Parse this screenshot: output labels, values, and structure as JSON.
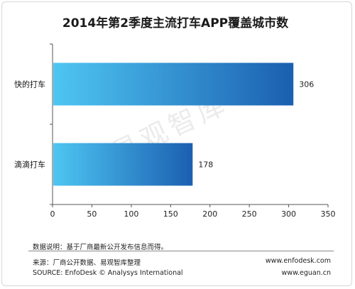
{
  "chart_data": {
    "type": "bar",
    "orientation": "horizontal",
    "title": "2014年第2季度主流打车APP覆盖城市数",
    "categories": [
      "快的打车",
      "滴滴打车"
    ],
    "values": [
      306,
      178
    ],
    "xlim": [
      0,
      350
    ],
    "xticks": [
      "0",
      "50",
      "100",
      "150",
      "200",
      "250",
      "300",
      "350"
    ],
    "bar_gradient": [
      "#4ec6f2",
      "#1b5fb0"
    ]
  },
  "watermark": "易观智库",
  "footer": {
    "note": "数据说明：基于厂商最新公开发布信息而得。",
    "source_cn": "来源：厂商公开数据、易观智库整理",
    "site1": "www.enfodesk.com",
    "source_en": "SOURCE: EnfoDesk © Analysys International",
    "site2": "www.eguan.cn"
  }
}
